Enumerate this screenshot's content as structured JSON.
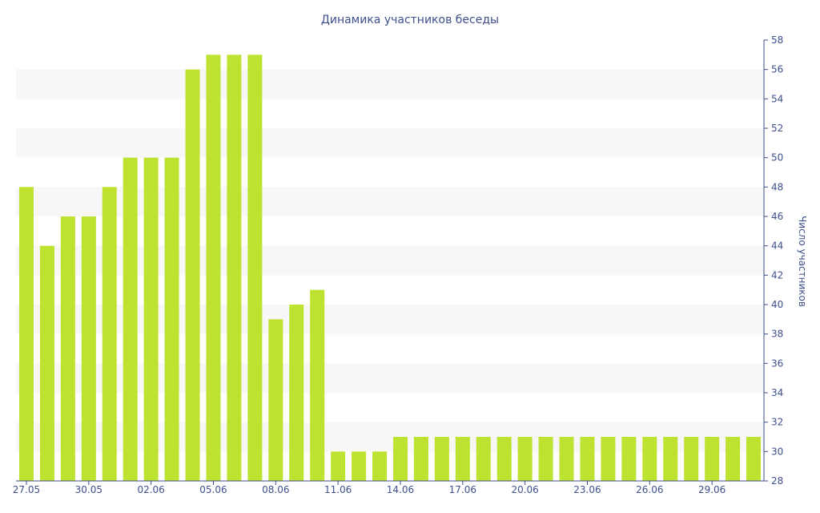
{
  "chart_data": {
    "type": "bar",
    "title": "Динамика участников беседы",
    "xlabel": "",
    "ylabel": "Число участников",
    "ylim": [
      28,
      58
    ],
    "y_ticks": [
      28,
      30,
      32,
      34,
      36,
      38,
      40,
      42,
      44,
      46,
      48,
      50,
      52,
      54,
      56,
      58
    ],
    "y_axis_side": "right",
    "grid": "alternating horizontal bands",
    "bar_color": "#bde22f",
    "band_color": "#f7f7f7",
    "text_color": "#3e4f8c",
    "axis_color": "#3e4f8c",
    "categories": [
      "27.05",
      "28.05",
      "29.05",
      "30.05",
      "31.05",
      "01.06",
      "02.06",
      "03.06",
      "04.06",
      "05.06",
      "06.06",
      "07.06",
      "08.06",
      "09.06",
      "10.06",
      "11.06",
      "12.06",
      "13.06",
      "14.06",
      "15.06",
      "16.06",
      "17.06",
      "18.06",
      "19.06",
      "20.06",
      "21.06",
      "22.06",
      "23.06",
      "24.06",
      "25.06",
      "26.06",
      "27.06",
      "28.06",
      "29.06",
      "30.06",
      "01.07"
    ],
    "x_tick_labels": [
      "27.05",
      "30.05",
      "02.06",
      "05.06",
      "08.06",
      "11.06",
      "14.06",
      "17.06",
      "20.06",
      "23.06",
      "26.06",
      "29.06"
    ],
    "values": [
      48,
      44,
      46,
      46,
      48,
      50,
      50,
      50,
      56,
      57,
      57,
      57,
      39,
      40,
      41,
      30,
      30,
      30,
      31,
      31,
      31,
      31,
      31,
      31,
      31,
      31,
      31,
      31,
      31,
      31,
      31,
      31,
      31,
      31,
      31,
      31
    ]
  }
}
